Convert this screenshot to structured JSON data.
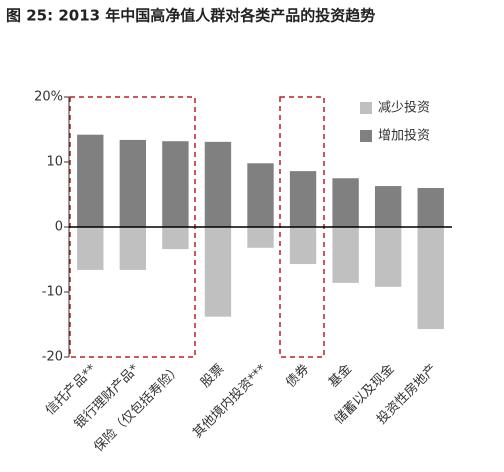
{
  "chart_data": {
    "type": "bar",
    "title": "图 25: 2013 年中国高净值人群对各类产品的投资趋势",
    "categories": [
      "信托产品**",
      "银行理财产品*",
      "保险（仅包括寿险）",
      "股票",
      "其他境内投资***",
      "债券",
      "基金",
      "储蓄以及现金",
      "投资性房地产"
    ],
    "series": [
      {
        "name": "减少投资",
        "color": "#c0c0c0",
        "values": [
          -6.6,
          -6.6,
          -3.4,
          -13.8,
          -3.2,
          -5.7,
          -8.6,
          -9.2,
          -15.7
        ]
      },
      {
        "name": "增加投资",
        "color": "#808080",
        "values": [
          14.2,
          13.4,
          13.2,
          13.1,
          9.8,
          8.6,
          7.5,
          6.3,
          6.0
        ]
      }
    ],
    "ylim": [
      -20,
      20
    ],
    "yticks": [
      -20,
      -10,
      0,
      10,
      {
        "value": 20,
        "label": "20%"
      }
    ],
    "legend": "top-right"
  }
}
